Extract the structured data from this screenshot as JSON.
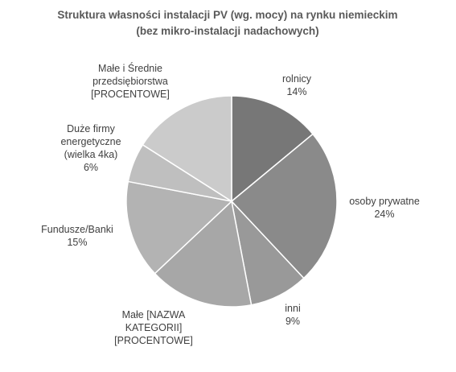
{
  "chart_data": {
    "type": "pie",
    "title": [
      "Struktura własności instalacji PV (wg. mocy) na rynku niemieckim",
      "(bez mikro-instalacji nadachowych)"
    ],
    "slices": [
      {
        "name": "rolnicy",
        "value": 14,
        "label_lines": [
          "rolnicy",
          "14%"
        ],
        "color": "#777777"
      },
      {
        "name": "osoby prywatne",
        "value": 24,
        "label_lines": [
          "osoby prywatne",
          "24%"
        ],
        "color": "#8a8a8a"
      },
      {
        "name": "inni",
        "value": 9,
        "label_lines": [
          "inni",
          "9%"
        ],
        "color": "#999999"
      },
      {
        "name": "Małe",
        "value": 16,
        "label_lines": [
          "Małe [NAZWA",
          "KATEGORII]",
          "[PROCENTOWE]"
        ],
        "color": "#a7a7a7"
      },
      {
        "name": "Fundusze/Banki",
        "value": 15,
        "label_lines": [
          "Fundusze/Banki",
          "15%"
        ],
        "color": "#b3b3b3"
      },
      {
        "name": "Duże firmy energetyczne (wielka 4ka)",
        "value": 6,
        "label_lines": [
          "Duże firmy",
          "energetyczne",
          "(wielka 4ka)",
          "6%"
        ],
        "color": "#bfbfbf"
      },
      {
        "name": "Małe i Średnie przedsiębiorstwa",
        "value": 16,
        "label_lines": [
          "Małe i Średnie",
          "przedsiębiorstwa",
          "[PROCENTOWE]"
        ],
        "color": "#cbcbcb"
      }
    ]
  }
}
